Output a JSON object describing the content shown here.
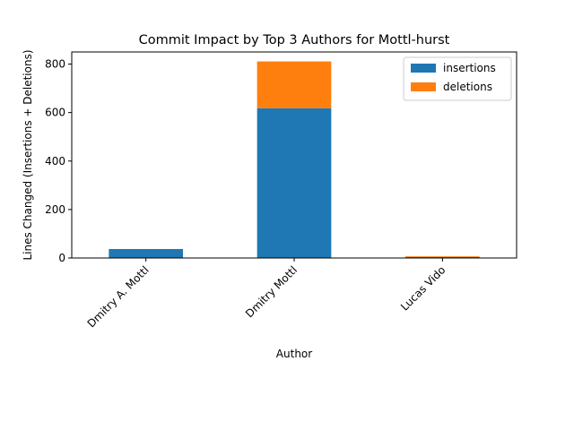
{
  "chart_data": {
    "type": "bar",
    "stacked": true,
    "title": "Commit Impact by Top 3 Authors for Mottl-hurst",
    "xlabel": "Author",
    "ylabel": "Lines Changed (Insertions + Deletions)",
    "categories": [
      "Dmitry A. Mottl",
      "Dmitry Mottl",
      "Lucas Vido"
    ],
    "series": [
      {
        "name": "insertions",
        "color": "#1f77b4",
        "values": [
          37,
          618,
          4
        ]
      },
      {
        "name": "deletions",
        "color": "#ff7f0e",
        "values": [
          0,
          193,
          3
        ]
      }
    ],
    "ylim": [
      0,
      850
    ],
    "yticks": [
      0,
      200,
      400,
      600,
      800
    ],
    "grid": false,
    "legend_position": "top-right"
  }
}
